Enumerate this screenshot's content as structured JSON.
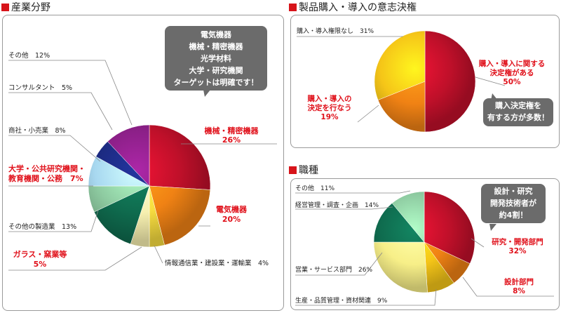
{
  "titles": {
    "industry": "産業分野",
    "authority": "製品購入・導入の意志決権",
    "occupation": "職種"
  },
  "callouts": {
    "industry": [
      "電気機器",
      "機械・精密機器",
      "光学材料",
      "大学・研究機関",
      "ターゲットは明確です！"
    ],
    "authority": [
      "購入決定権を",
      "有する方が多数！"
    ],
    "occupation": [
      "設計・研究",
      "開発技術者が",
      "約4割！"
    ]
  },
  "chart_data": [
    {
      "type": "pie",
      "title": "産業分野",
      "slices": [
        {
          "label": "機械・精密機器",
          "value": 26,
          "color": "#c0102a",
          "highlight": true
        },
        {
          "label": "電気機器",
          "value": 20,
          "color": "#f08214",
          "highlight": true
        },
        {
          "label": "情報通信業・建設業・運輸業",
          "value": 4,
          "color": "#f7dc40",
          "highlight": false
        },
        {
          "label": "ガラス・窯業等",
          "value": 5,
          "color": "#f7f0b0",
          "highlight": true
        },
        {
          "label": "その他の製造業",
          "value": 13,
          "color": "#0f6b4e",
          "highlight": false
        },
        {
          "label": "大学・公共研究機関・教育機関・公務",
          "value": 7,
          "color": "#8ecba1",
          "highlight": true
        },
        {
          "label": "商社・小売業",
          "value": 8,
          "color": "#a8d8f0",
          "highlight": false
        },
        {
          "label": "コンサルタント",
          "value": 5,
          "color": "#1c2a80",
          "highlight": false
        },
        {
          "label": "その他",
          "value": 12,
          "color": "#8a1f86",
          "highlight": false
        }
      ],
      "label_text": [
        "機械・精密機器",
        "26%",
        "電気機器",
        "20%",
        "情報通信業・建設業・運輸業　4%",
        "ガラス・窯業等",
        "5%",
        "その他の製造業　13%",
        "大学・公共研究機関・",
        "教育機関・公務　7%",
        "商社・小売業　8%",
        "コンサルタント　5%",
        "その他　12%"
      ]
    },
    {
      "type": "pie",
      "title": "製品購入・導入の意志決権",
      "slices": [
        {
          "label": "購入・導入に関する決定権がある",
          "value": 50,
          "color": "#c0102a",
          "highlight": true
        },
        {
          "label": "購入・導入の決定を行なう",
          "value": 19,
          "color": "#f08214",
          "highlight": true
        },
        {
          "label": "購入・導入権限なし",
          "value": 31,
          "color": "#f5c518",
          "highlight": false
        }
      ],
      "label_text": [
        "購入・導入に関する",
        "決定権がある",
        "50%",
        "購入・導入の",
        "決定を行なう",
        "19%",
        "購入・導入権限なし　31%"
      ]
    },
    {
      "type": "pie",
      "title": "職種",
      "slices": [
        {
          "label": "研究・開発部門",
          "value": 32,
          "color": "#c0102a",
          "highlight": true
        },
        {
          "label": "設計部門",
          "value": 8,
          "color": "#f08214",
          "highlight": true
        },
        {
          "label": "生産・品質管理・資材関連",
          "value": 9,
          "color": "#f5c518",
          "highlight": false
        },
        {
          "label": "営業・サービス部門",
          "value": 26,
          "color": "#f7ef88",
          "highlight": false
        },
        {
          "label": "経営管理・調査・企画",
          "value": 14,
          "color": "#0f6b4e",
          "highlight": false
        },
        {
          "label": "その他",
          "value": 11,
          "color": "#8ecba1",
          "highlight": false
        }
      ],
      "label_text": [
        "研究・開発部門",
        "32%",
        "設計部門",
        "8%",
        "生産・品質管理・資材関連　9%",
        "営業・サービス部門　26%",
        "経営管理・調査・企画　14%",
        "その他　11%"
      ]
    }
  ]
}
